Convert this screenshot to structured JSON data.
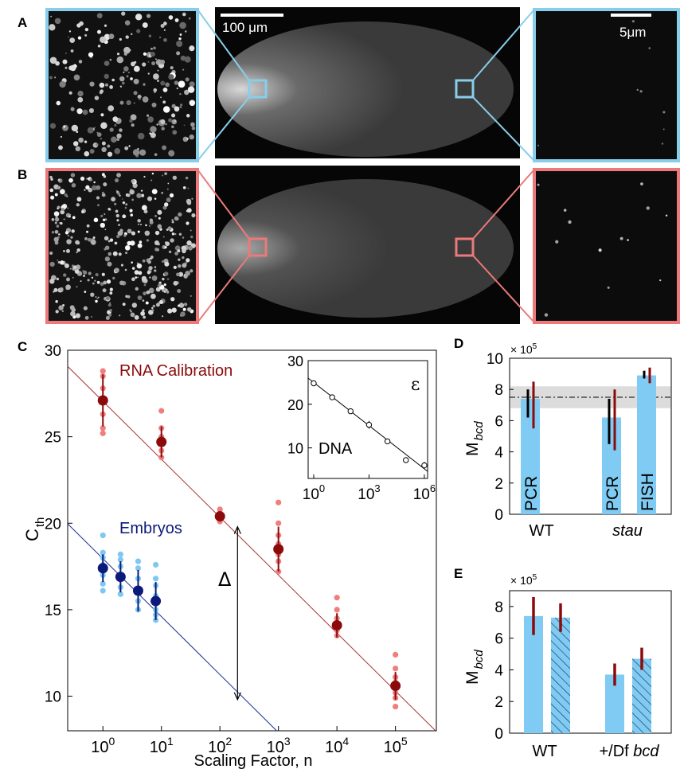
{
  "figure": {
    "panels": {
      "A": "A",
      "B": "B",
      "C": "C",
      "D": "D",
      "E": "E"
    },
    "scale_bars": {
      "embryo": "100 μm",
      "inset": "5μm"
    },
    "colors": {
      "blue_box": "#87ceeb",
      "red_box": "#ec7a7a",
      "dark_red": "#8b0a0a",
      "light_red": "#ef7f7f",
      "dark_blue": "#0b1a7a",
      "light_blue": "#7ec8f2",
      "bar_blue": "#7fcbf3",
      "gray_band": "#dcdcdc"
    }
  },
  "chart_data": [
    {
      "panel": "C",
      "type": "scatter",
      "xscale": "log",
      "xlim": [
        0.25,
        500000
      ],
      "ylim": [
        8,
        30
      ],
      "xticks": [
        {
          "v": 1,
          "base": "10",
          "exp": "0"
        },
        {
          "v": 10,
          "base": "10",
          "exp": "1"
        },
        {
          "v": 100,
          "base": "10",
          "exp": "2"
        },
        {
          "v": 1000,
          "base": "10",
          "exp": "3"
        },
        {
          "v": 10000,
          "base": "10",
          "exp": "4"
        },
        {
          "v": 100000,
          "base": "10",
          "exp": "5"
        }
      ],
      "yticks": [
        10,
        15,
        20,
        25,
        30
      ],
      "xlabel": "Scaling Factor, n",
      "ylabel_main": "C",
      "ylabel_sub": "th",
      "series": [
        {
          "name": "RNA Calibration",
          "x": [
            1,
            10,
            100,
            1000,
            10000,
            100000
          ],
          "mean": [
            27.1,
            24.7,
            20.4,
            18.5,
            14.1,
            10.6
          ],
          "err": [
            1.5,
            0.9,
            0.3,
            1.3,
            0.7,
            0.8
          ],
          "replicates": [
            [
              25.2,
              25.5,
              26.3,
              27.0,
              27.8,
              28.5,
              28.8
            ],
            [
              23.8,
              24.2,
              24.6,
              25.0,
              25.5,
              26.5
            ],
            [
              20.1,
              20.3,
              20.6,
              20.8
            ],
            [
              17.2,
              17.8,
              18.2,
              18.8,
              19.3,
              20.0,
              21.2
            ],
            [
              13.5,
              13.8,
              14.1,
              14.5,
              15.0,
              15.7
            ],
            [
              9.4,
              9.9,
              10.2,
              10.8,
              11.1,
              11.6,
              12.4
            ]
          ],
          "fit": {
            "slope": -3.35,
            "intercept": 27.05
          }
        },
        {
          "name": "Embryos",
          "x": [
            1,
            2,
            4,
            8
          ],
          "mean": [
            17.4,
            16.9,
            16.1,
            15.5
          ],
          "err": [
            0.8,
            0.9,
            1.2,
            1.1
          ],
          "replicates": [
            [
              16.1,
              16.5,
              17.0,
              17.6,
              18.0,
              18.3,
              19.3
            ],
            [
              15.9,
              16.3,
              16.9,
              17.5,
              17.9,
              18.2
            ],
            [
              15.0,
              15.5,
              16.2,
              16.8,
              17.4,
              17.8
            ],
            [
              14.4,
              14.7,
              15.0,
              15.8,
              16.4,
              16.8,
              17.6
            ]
          ],
          "fit": {
            "slope": -3.35,
            "intercept": 17.95
          }
        }
      ],
      "delta_label": "Δ",
      "delta_arrow": {
        "x": 200,
        "y_from": 9.8,
        "y_to": 19.8
      },
      "inset": {
        "type": "scatter",
        "xscale": "log",
        "xlim": [
          0.5,
          1500000
        ],
        "ylim": [
          3,
          30
        ],
        "xticks": [
          {
            "v": 1,
            "base": "10",
            "exp": "0"
          },
          {
            "v": 1000,
            "base": "10",
            "exp": "3"
          },
          {
            "v": 1000000,
            "base": "10",
            "exp": "6"
          }
        ],
        "yticks": [
          10,
          20,
          30
        ],
        "label": "DNA",
        "corner_label": "ε",
        "x": [
          1,
          10,
          100,
          1000,
          10000,
          100000,
          1000000
        ],
        "y": [
          24.8,
          21.6,
          18.4,
          15.3,
          11.5,
          7.2,
          6.0
        ],
        "err": [
          0.5,
          0.5,
          0.5,
          0.9,
          0.5,
          0.5,
          0.8
        ],
        "fit": {
          "slope": -3.3,
          "intercept": 25.0
        }
      }
    },
    {
      "panel": "D",
      "type": "bar",
      "ylim": [
        0,
        10
      ],
      "yticks": [
        0,
        2,
        4,
        6,
        8,
        10
      ],
      "multiplier": "× 10",
      "multiplier_exp": "5",
      "ylabel_main": "M",
      "ylabel_sub": "bcd",
      "categories": [
        "WT",
        "stau"
      ],
      "bars": [
        {
          "group": "WT",
          "label": "PCR",
          "value": 7.4,
          "black_err": [
            6.2,
            8.0
          ],
          "red_err": [
            5.5,
            8.5
          ]
        },
        {
          "group": "stau",
          "label": "PCR",
          "value": 6.2,
          "black_err": [
            4.5,
            7.4
          ],
          "red_err": [
            4.1,
            8.0
          ]
        },
        {
          "group": "stau",
          "label": "FISH",
          "value": 8.9,
          "black_err": [
            8.7,
            9.2
          ],
          "red_err": [
            8.4,
            9.4
          ]
        }
      ],
      "reference_line": 7.5,
      "reference_band": [
        6.8,
        8.2
      ]
    },
    {
      "panel": "E",
      "type": "bar",
      "ylim": [
        0,
        9
      ],
      "yticks": [
        0,
        2,
        4,
        6,
        8
      ],
      "multiplier": "× 10",
      "multiplier_exp": "5",
      "ylabel_main": "M",
      "ylabel_sub": "bcd",
      "categories": [
        "WT",
        "+/Df bcd"
      ],
      "category_parts": [
        {
          "plain": "WT",
          "italic": ""
        },
        {
          "plain": "+/Df ",
          "italic": "bcd"
        }
      ],
      "bars": [
        {
          "group": "WT",
          "value": 7.4,
          "hatched": false,
          "err": [
            6.2,
            8.6
          ]
        },
        {
          "group": "WT",
          "value": 7.3,
          "hatched": true,
          "err": [
            6.4,
            8.2
          ]
        },
        {
          "group": "+/Df bcd",
          "value": 3.7,
          "hatched": false,
          "err": [
            3.0,
            4.4
          ]
        },
        {
          "group": "+/Df bcd",
          "value": 4.7,
          "hatched": true,
          "err": [
            4.0,
            5.4
          ]
        }
      ]
    }
  ]
}
